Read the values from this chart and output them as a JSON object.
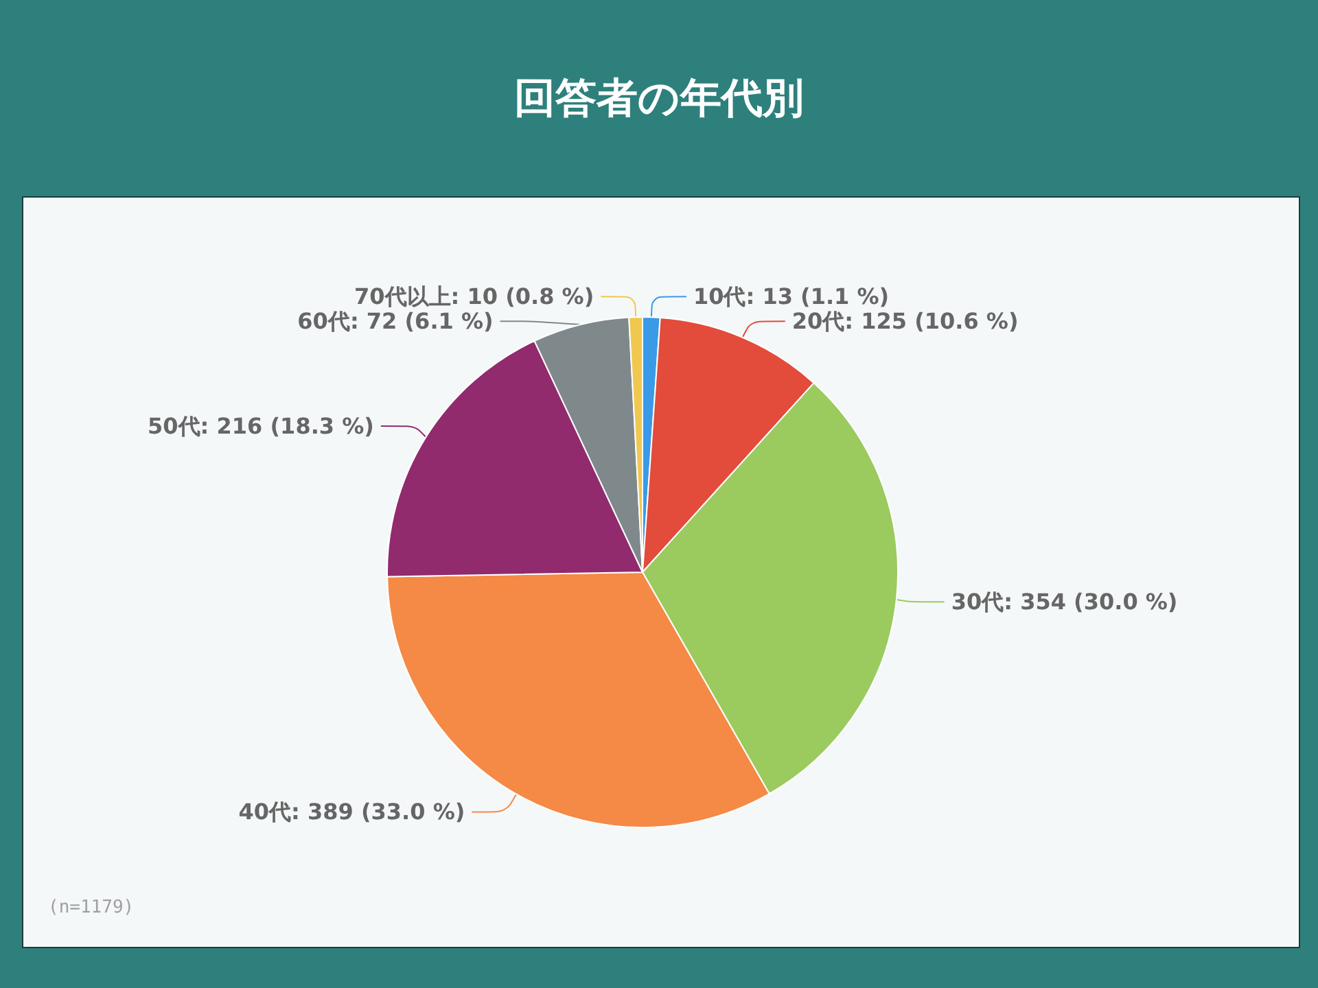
{
  "chart_data": {
    "type": "pie",
    "title": "回答者の年代別",
    "categories": [
      "10代",
      "20代",
      "30代",
      "40代",
      "50代",
      "60代",
      "70代以上"
    ],
    "values": [
      13,
      125,
      354,
      389,
      216,
      72,
      10
    ],
    "value_labels": [
      "13 (1.1 %)",
      "125 (10.6 %)",
      "354 (30.0 %)",
      "389 (33.0 %)",
      "216 (18.3 %)",
      "72 (6.1 %)",
      "10 (0.8 %)"
    ],
    "colors": [
      "#3a9ae8",
      "#e34b3a",
      "#9bca5f",
      "#f48a45",
      "#922a6e",
      "#7f898b",
      "#f0c850"
    ],
    "annotations": [
      "(n=1179)"
    ],
    "legend": false
  }
}
